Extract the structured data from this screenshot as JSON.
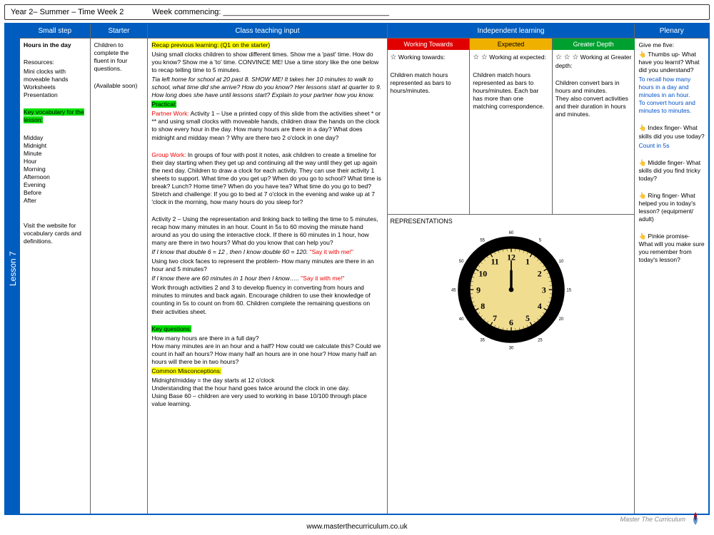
{
  "header": {
    "title": "Year 2– Summer – Time Week 2",
    "commencing_label": "Week commencing: ______________________________________"
  },
  "lesson_tab": "Lesson 7",
  "columns": {
    "small_step": {
      "header": "Small step",
      "title": "Hours in the day",
      "resources_label": "Resources:",
      "resources": "Mini clocks with moveable hands\nWorksheets\nPresentation",
      "vocab_label": "Key vocabulary for the lesson:",
      "vocab": "Midday\nMidnight\nMinute\nHour\nMorning\nAfternoon\nEvening\nBefore\nAfter",
      "note": "Visit the website for vocabulary cards and definitions."
    },
    "starter": {
      "header": "Starter",
      "text": "Children to complete the fluent in four questions.",
      "note": "(Available soon)"
    },
    "class_input": {
      "header": "Class teaching input",
      "recap_label": "Recap previous learning: (Q1 on the starter)",
      "recap_body": "Using small clocks children to show different times.  Show me a 'past' time. How do you know? Show me a 'to' time. CONVINCE ME!  Use a time story like the one below to recap telling time to 5 minutes.",
      "recap_story": "Tia left home for school at 20 past 8. SHOW ME!  It takes her 10 minutes to walk to school, what time did she arrive?   How do you know?  Her lessons start at quarter to 9.  How long does she have until lessons start?  Explain to your partner how you know.",
      "practical_label": "Practical:",
      "partner_label": "Partner Work:",
      "partner_body": "Activity 1 – Use a printed copy of this slide from the activities sheet * or ** and using small clocks with moveable hands, children draw the hands on the clock to show every hour in the day.  How many hours are there in a day?  What does midnight and midday mean ? Why are there two 2 o'clock in one day?",
      "group_label": "Group Work:",
      "group_body": "In groups of four with post it notes, ask children to create a timeline for their day starting when they get up and continuing all the way  until they get up again the next day. Children to draw a clock for each activity. They can use their activity 1 sheets to support.  What time do you get up?  When do you go to school?  What time is break? Lunch? Home time?  When do you have tea?  What time do you go to bed?  Stretch and challenge:  If you go to bed at 7 o'clock in the evening and wake up at 7 'clock in the morning, how many hours do you sleep for?",
      "activity2": "Activity 2 – Using the representation  and linking back to telling the time to 5 minutes, recap how many minutes in an hour.  Count in 5s to 60 moving the minute hand around as you do using the interactive clock.   If there is 60 minutes in 1 hour, how many are there in two hours?  What do you know that can help you?",
      "say1_ital": "If I know that double 6 = 12 , then I know double 60 = 120.",
      "say1": "\"Say it with me!\"",
      "clock_body": "Using two clock faces to represent the problem- How many minutes are there in an hour and 5 minutes?",
      "say2_ital": "If I know there are 60 minutes in 1 hour then I know…..",
      "say2": "\"Say it with me!\"",
      "work_body": "Work through activities 2 and 3 to develop fluency in converting from hours and minutes to minutes and back again. Encourage children to use their knowledge of counting in 5s to count on from 60. Children complete the remaining questions on their activities sheet.",
      "keyq_label": "Key questions:",
      "keyq_body": "How many hours are there in a full day?\nHow many minutes are in an hour and a half? How could we calculate this? Could we count in half an hours? How many half an hours are in one hour? How many half an hours will there be in two hours?",
      "misc_label": "Common Misconceptions:",
      "misc_body": "Midnight/midday = the day starts at 12 o'clock\nUnderstanding that the hour hand goes twice around the clock in one day.\nUsing Base 60 – children are very used to working in base 10/100 through place value learning."
    },
    "independent": {
      "header": "Independent learning",
      "levels": [
        {
          "label": "Working Towards",
          "color": "#e00000",
          "stars": "☆",
          "sub": "Working towards:",
          "body": "Children match hours represented as bars to hours/minutes."
        },
        {
          "label": "Expected",
          "color": "#f0b000",
          "stars": "☆ ☆",
          "sub": "Working at expected:",
          "body": "Children match hours represented as bars to hours/minutes. Each bar has more than one matching correspondence."
        },
        {
          "label": "Greater Depth",
          "color": "#00a030",
          "stars": "☆ ☆ ☆",
          "sub": "Working at Greater depth:",
          "body": "Children convert bars in hours and minutes.\nThey also convert activities and their duration in hours and minutes."
        }
      ],
      "rep_label": "REPRESENTATIONS",
      "clock": {
        "face_color": "#f0dd90",
        "border_color": "#000000",
        "numbers": [
          "12",
          "1",
          "2",
          "3",
          "4",
          "5",
          "6",
          "7",
          "8",
          "9",
          "10",
          "11"
        ],
        "minute_marks": [
          "60",
          "5",
          "10",
          "15",
          "20",
          "25",
          "30",
          "35",
          "40",
          "45",
          "50",
          "55"
        ]
      }
    },
    "plenary": {
      "header": "Plenary",
      "intro": "Give me five:",
      "items": [
        {
          "icon": "👆",
          "q": "Thumbs up- What have you learnt? What did you understand?",
          "a": "To recall how many hours in a day and minutes in an hour.\nTo convert hours and minutes to minutes."
        },
        {
          "icon": "👆",
          "q": "Index finger- What skills did you use today?",
          "a": "Count in 5s"
        },
        {
          "icon": "👆",
          "q": "Middle finger- What skills did you find tricky today?",
          "a": ""
        },
        {
          "icon": "👆",
          "q": "Ring finger- What helped you in today's lesson? (equipment/ adult)",
          "a": ""
        },
        {
          "icon": "👆",
          "q": "Pinkie promise- What will you make sure you remember from today's lesson?",
          "a": ""
        }
      ]
    }
  },
  "footer": {
    "url": "www.masterthecurriculum.co.uk",
    "brand": "Master The Curriculum"
  }
}
